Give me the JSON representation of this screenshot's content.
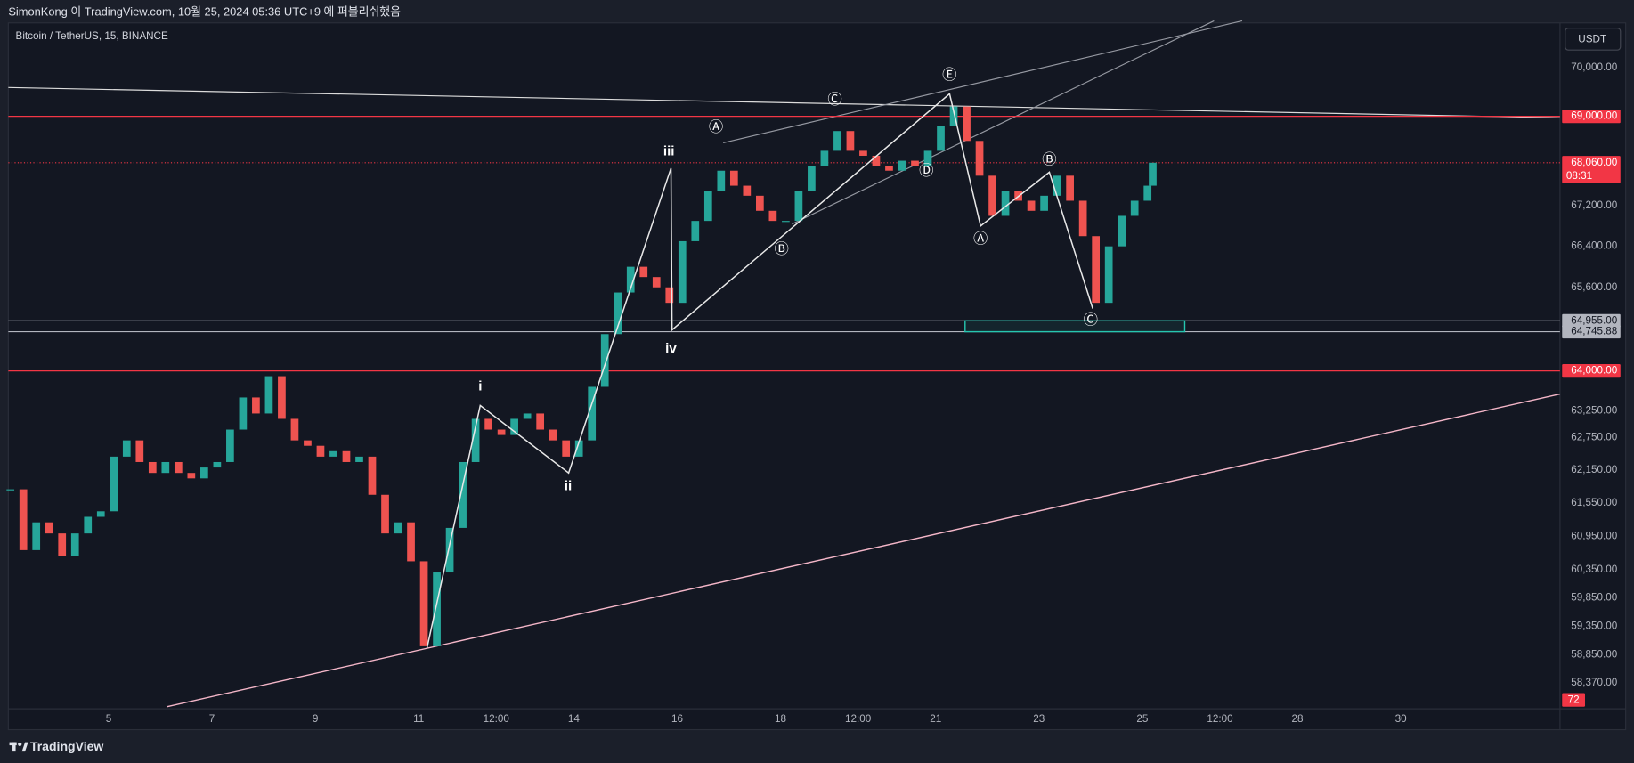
{
  "header": {
    "publish_note": "SimonKong 이 TradingView.com, 10월 25, 2024 05:36 UTC+9 에 퍼블리쉬했음",
    "symbol": "Bitcoin / TetherUS, 15, BINANCE",
    "currency": "USDT",
    "brand": "TradingView"
  },
  "chart_data": {
    "type": "candlestick",
    "log_scale": true,
    "grid": false,
    "xlim": [
      3.06,
      33.08
    ],
    "ylim": [
      57920,
      70930
    ],
    "xticks": [
      5,
      7,
      9,
      11,
      {
        "value": 12.5,
        "label": "12:00"
      },
      14,
      16,
      18,
      {
        "value": 19.5,
        "label": "12:00"
      },
      21,
      23,
      25,
      {
        "value": 26.5,
        "label": "12:00"
      },
      28,
      30
    ],
    "yticks": [
      {
        "value": 70000,
        "label": "70,000.00"
      },
      {
        "value": 67200,
        "label": "67,200.00"
      },
      {
        "value": 66400,
        "label": "66,400.00"
      },
      {
        "value": 65600,
        "label": "65,600.00"
      },
      {
        "value": 63250,
        "label": "63,250.00"
      },
      {
        "value": 62750,
        "label": "62,750.00"
      },
      {
        "value": 62150,
        "label": "62,150.00"
      },
      {
        "value": 61550,
        "label": "61,550.00"
      },
      {
        "value": 60950,
        "label": "60,950.00"
      },
      {
        "value": 60350,
        "label": "60,350.00"
      },
      {
        "value": 59850,
        "label": "59,850.00"
      },
      {
        "value": 59350,
        "label": "59,350.00"
      },
      {
        "value": 58850,
        "label": "58,850.00"
      },
      {
        "value": 58370,
        "label": "58,370.00"
      }
    ],
    "colors": {
      "up": "#26a69a",
      "down": "#ef5350",
      "wave": "#e8e8e8",
      "zone": "#26c6b0"
    },
    "x": [
      3.1,
      3.35,
      3.6,
      3.85,
      4.1,
      4.35,
      4.6,
      4.85,
      5.1,
      5.35,
      5.6,
      5.85,
      6.1,
      6.35,
      6.6,
      6.85,
      7.1,
      7.35,
      7.6,
      7.85,
      8.1,
      8.35,
      8.6,
      8.85,
      9.1,
      9.35,
      9.6,
      9.85,
      10.1,
      10.35,
      10.6,
      10.85,
      11.1,
      11.35,
      11.6,
      11.85,
      12.1,
      12.35,
      12.6,
      12.85,
      13.1,
      13.35,
      13.6,
      13.85,
      14.1,
      14.35,
      14.6,
      14.85,
      15.1,
      15.35,
      15.6,
      15.85,
      16.1,
      16.35,
      16.6,
      16.85,
      17.1,
      17.35,
      17.6,
      17.85,
      18.1,
      18.35,
      18.6,
      18.85,
      19.1,
      19.35,
      19.6,
      19.85,
      20.1,
      20.35,
      20.6,
      20.85,
      21.1,
      21.35,
      21.6,
      21.85,
      22.1,
      22.35,
      22.6,
      22.85,
      23.1,
      23.35,
      23.6,
      23.85,
      24.1,
      24.35,
      24.6,
      24.85,
      25.1,
      25.2
    ],
    "values": [
      61800,
      60700,
      61200,
      61000,
      60600,
      61000,
      61300,
      61400,
      62400,
      62700,
      62300,
      62100,
      62300,
      62100,
      62000,
      62200,
      62300,
      62900,
      63500,
      63200,
      63900,
      63100,
      62700,
      62600,
      62400,
      62500,
      62300,
      62400,
      61700,
      61000,
      61200,
      60500,
      59000,
      60300,
      61100,
      62300,
      63100,
      62900,
      62800,
      63100,
      63200,
      62900,
      62700,
      62400,
      62700,
      63700,
      64700,
      65500,
      66000,
      65800,
      65600,
      65300,
      66500,
      66900,
      67500,
      67900,
      67600,
      67400,
      67100,
      66900,
      66900,
      67500,
      68000,
      68300,
      68700,
      68300,
      68200,
      68000,
      67900,
      68100,
      68000,
      68300,
      68800,
      69200,
      68500,
      67800,
      67000,
      67500,
      67300,
      67100,
      67400,
      67800,
      67300,
      66600,
      65300,
      66400,
      67000,
      67300,
      67600,
      68060
    ],
    "levels": [
      {
        "value": 69000,
        "label": "69,000.00",
        "color": "#f23645",
        "dotted": false
      },
      {
        "value": 68060,
        "label": "68,060.00",
        "countdown": "08:31",
        "color": "#f23645",
        "dotted": true
      },
      {
        "value": 64955,
        "label": "64,955.00",
        "color": "#b2b5be",
        "dotted": false
      },
      {
        "value": 64745.88,
        "label": "64,745.88",
        "color": "#b2b5be",
        "dotted": false
      },
      {
        "value": 64000,
        "label": "64,000.00",
        "color": "#f23645",
        "dotted": false
      }
    ],
    "wave": {
      "x": [
        11.16,
        12.19,
        13.9,
        15.88,
        15.9,
        21.27,
        21.87,
        23.2,
        24.04
      ],
      "values": [
        58970,
        63350,
        62100,
        67950,
        64780,
        69460,
        66800,
        67870,
        65190
      ]
    },
    "wave_labels": [
      {
        "text": "i",
        "x": 12.19,
        "y": 63700
      },
      {
        "text": "ii",
        "x": 13.89,
        "y": 61850
      },
      {
        "text": "iii",
        "x": 15.84,
        "y": 68280
      },
      {
        "text": "iv",
        "x": 15.88,
        "y": 64420
      },
      {
        "text": "Ⓐ",
        "x": 16.75,
        "y": 68760
      },
      {
        "text": "Ⓑ",
        "x": 18.02,
        "y": 66330
      },
      {
        "text": "Ⓒ",
        "x": 19.05,
        "y": 69330
      },
      {
        "text": "Ⓓ",
        "x": 20.82,
        "y": 67880
      },
      {
        "text": "Ⓔ",
        "x": 21.27,
        "y": 69830
      },
      {
        "text": "Ⓐ",
        "x": 21.87,
        "y": 66530
      },
      {
        "text": "Ⓑ",
        "x": 23.2,
        "y": 68110
      },
      {
        "text": "Ⓒ",
        "x": 24.0,
        "y": 64960
      }
    ],
    "zone": {
      "x": [
        21.57,
        25.82
      ],
      "values": [
        64745.88,
        64955
      ]
    },
    "volume_label": "72"
  }
}
